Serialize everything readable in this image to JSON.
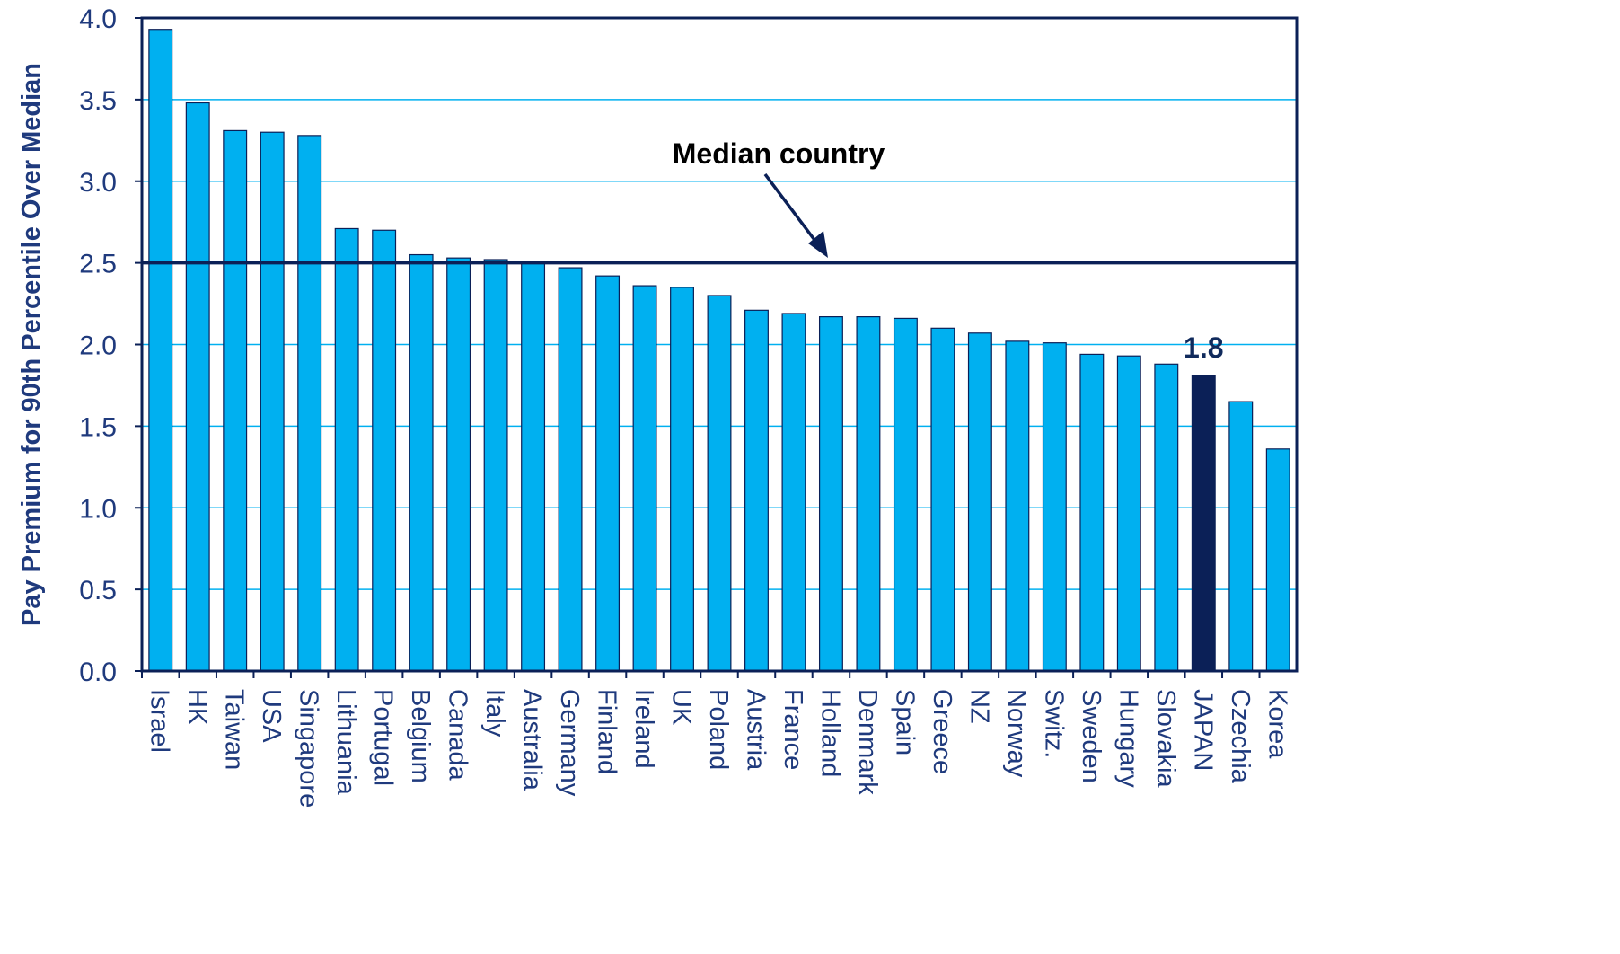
{
  "chart_data": {
    "type": "bar",
    "ylabel": "Pay Premium for 90th Percentile Over Median",
    "xlabel": "",
    "ylim": [
      0,
      4.0
    ],
    "y_ticks": [
      "0.0",
      "0.5",
      "1.0",
      "1.5",
      "2.0",
      "2.5",
      "3.0",
      "3.5",
      "4.0"
    ],
    "grid": true,
    "categories": [
      "Israel",
      "HK",
      "Taiwan",
      "USA",
      "Singapore",
      "Lithuania",
      "Portugal",
      "Belgium",
      "Canada",
      "Italy",
      "Australia",
      "Germany",
      "Finland",
      "Ireland",
      "UK",
      "Poland",
      "Austria",
      "France",
      "Holland",
      "Denmark",
      "Spain",
      "Greece",
      "NZ",
      "Norway",
      "Switz.",
      "Sweden",
      "Hungary",
      "Slovakia",
      "JAPAN",
      "Czechia",
      "Korea"
    ],
    "values": [
      3.93,
      3.48,
      3.31,
      3.3,
      3.28,
      2.71,
      2.7,
      2.55,
      2.53,
      2.52,
      2.5,
      2.47,
      2.42,
      2.36,
      2.35,
      2.3,
      2.21,
      2.19,
      2.17,
      2.17,
      2.16,
      2.1,
      2.07,
      2.02,
      2.01,
      1.94,
      1.93,
      1.88,
      1.81,
      1.65,
      1.36
    ],
    "highlight_category": "JAPAN",
    "highlight_label": "1.8",
    "reference_line": {
      "value": 2.5,
      "label": "Median country"
    },
    "colors": {
      "bar": "#00b0f0",
      "highlight": "#0b2057",
      "axis": "#0b2057",
      "grid": "#00b0f0",
      "text": "#1f3a7d"
    }
  }
}
